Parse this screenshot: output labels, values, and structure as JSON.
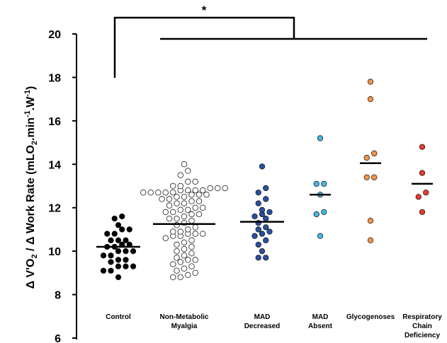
{
  "chart_data": {
    "type": "scatter",
    "title": "",
    "ylabel_parts": {
      "a": "Δ V'O",
      "a_sub": "2",
      "b": " / Δ Work Rate   (mLO",
      "b_sub": "2",
      "c": ".min",
      "c_sup": "-1",
      "d": ".W",
      "d_sup": "-1",
      "e": ")"
    },
    "ylim": [
      6,
      20
    ],
    "yticks": [
      "6",
      "8",
      "10",
      "12",
      "14",
      "16",
      "18",
      "20"
    ],
    "significance_marker": "*",
    "categories": [
      {
        "label": [
          "Control"
        ],
        "color": "#000000",
        "mean": 10.2,
        "points": [
          11.6,
          11.5,
          11.2,
          11.0,
          11.0,
          10.8,
          10.8,
          10.5,
          10.5,
          10.5,
          10.3,
          10.3,
          10.2,
          10.2,
          10.0,
          10.0,
          10.0,
          9.8,
          9.8,
          9.6,
          9.6,
          9.5,
          9.3,
          9.3,
          9.3,
          9.1,
          9.1,
          8.8
        ]
      },
      {
        "label": [
          "Non-Metabolic",
          "Myalgia"
        ],
        "color": "#ffffff",
        "mean": 11.25,
        "points": [
          14.0,
          13.7,
          13.5,
          13.2,
          13.2,
          13.0,
          13.0,
          12.9,
          12.9,
          12.9,
          12.8,
          12.8,
          12.8,
          12.8,
          12.7,
          12.7,
          12.7,
          12.7,
          12.7,
          12.6,
          12.6,
          12.6,
          12.5,
          12.5,
          12.4,
          12.4,
          12.3,
          12.3,
          12.2,
          12.2,
          12.1,
          12.0,
          12.0,
          11.9,
          11.9,
          11.8,
          11.8,
          11.7,
          11.7,
          11.6,
          11.5,
          11.5,
          11.4,
          11.3,
          11.2,
          11.1,
          11.0,
          10.9,
          10.9,
          10.8,
          10.8,
          10.8,
          10.7,
          10.7,
          10.6,
          10.5,
          10.4,
          10.3,
          10.2,
          10.1,
          10.0,
          9.9,
          9.8,
          9.7,
          9.6,
          9.6,
          9.5,
          9.4,
          9.3,
          9.2,
          9.1,
          9.0,
          8.9,
          8.8,
          8.8
        ]
      },
      {
        "label": [
          "MAD",
          "Decreased"
        ],
        "color": "#2a4fa0",
        "mean": 11.35,
        "points": [
          13.9,
          12.9,
          12.7,
          12.4,
          12.2,
          11.9,
          11.8,
          11.7,
          11.6,
          11.5,
          11.3,
          11.1,
          11.0,
          10.9,
          10.8,
          10.7,
          10.5,
          10.3,
          10.0,
          9.7,
          9.7
        ]
      },
      {
        "label": [
          "MAD",
          "Absent"
        ],
        "color": "#45b6e4",
        "mean": 12.6,
        "points": [
          15.2,
          13.1,
          13.1,
          12.6,
          11.8,
          11.7,
          10.7
        ]
      },
      {
        "label": [
          "Glycogenoses"
        ],
        "color": "#f0944c",
        "mean": 14.05,
        "points": [
          17.8,
          17.0,
          14.5,
          14.3,
          13.4,
          13.4,
          11.4,
          10.5
        ]
      },
      {
        "label": [
          "Respiratory",
          "Chain",
          "Deficiency"
        ],
        "color": "#e63b2e",
        "mean": 13.1,
        "points": [
          14.8,
          13.6,
          12.7,
          12.5,
          11.8
        ]
      }
    ]
  }
}
